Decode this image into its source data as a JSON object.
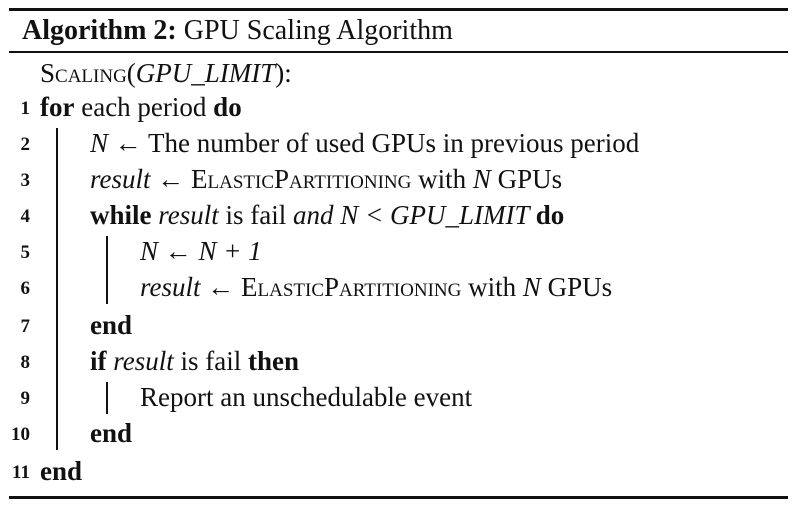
{
  "algorithm": {
    "label": "Algorithm 2:",
    "title": "GPU Scaling Algorithm",
    "signature": {
      "name": "Scaling",
      "open": "(",
      "param": "GPU_LIMIT",
      "close": "):"
    },
    "lines": [
      {
        "num": "1",
        "kw_for": "for",
        "text_a": " each period ",
        "kw_do": "do"
      },
      {
        "num": "2",
        "var": "N",
        "text": " ← The number of used GPUs in previous period"
      },
      {
        "num": "3",
        "var": "result",
        "arrow": " ← ",
        "func": "ElasticPartitioning",
        "text_b": " with ",
        "var2": "N",
        "text_c": " GPUs"
      },
      {
        "num": "4",
        "kw_while": "while",
        "var": " result",
        "text_a": " is fail ",
        "kw_and": "and",
        "cond": " N < GPU_LIMIT ",
        "kw_do": "do"
      },
      {
        "num": "5",
        "expr": "N ← N + 1"
      },
      {
        "num": "6",
        "var": "result",
        "arrow": " ← ",
        "func": "ElasticPartitioning",
        "text_b": " with ",
        "var2": "N",
        "text_c": " GPUs"
      },
      {
        "num": "7",
        "kw_end": "end"
      },
      {
        "num": "8",
        "kw_if": "if",
        "var": " result",
        "text_a": " is fail ",
        "kw_then": "then"
      },
      {
        "num": "9",
        "text": "Report an unschedulable event"
      },
      {
        "num": "10",
        "kw_end": "end"
      },
      {
        "num": "11",
        "kw_end": "end"
      }
    ]
  }
}
